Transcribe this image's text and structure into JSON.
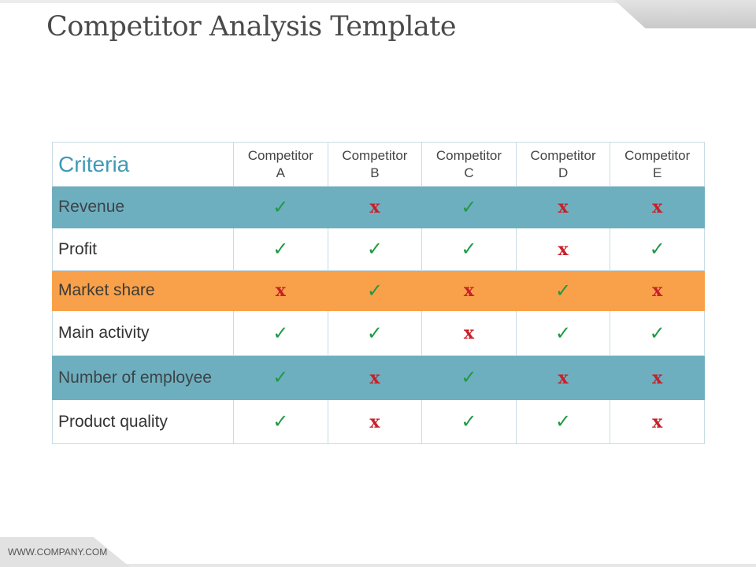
{
  "slide": {
    "title": "Competitor Analysis Template",
    "footer": "WWW.COMPANY.COM"
  },
  "table": {
    "criteria_header": "Criteria",
    "competitors": [
      {
        "line1": "Competitor",
        "line2": "A"
      },
      {
        "line1": "Competitor",
        "line2": "B"
      },
      {
        "line1": "Competitor",
        "line2": "C"
      },
      {
        "line1": "Competitor",
        "line2": "D"
      },
      {
        "line1": "Competitor",
        "line2": "E"
      }
    ],
    "rows": [
      {
        "label": "Revenue",
        "style": "teal",
        "marks": [
          "✓",
          "x",
          "✓",
          "x",
          "x"
        ]
      },
      {
        "label": "Profit",
        "style": "white",
        "marks": [
          "✓",
          "✓",
          "✓",
          "x",
          "✓"
        ]
      },
      {
        "label": "Market share",
        "style": "orange",
        "marks": [
          "x",
          "✓",
          "x",
          "✓",
          "x"
        ]
      },
      {
        "label": "Main activity",
        "style": "white",
        "marks": [
          "✓",
          "✓",
          "x",
          "✓",
          "✓"
        ]
      },
      {
        "label": "Number of employee",
        "style": "teal",
        "marks": [
          "✓",
          "x",
          "✓",
          "x",
          "x"
        ]
      },
      {
        "label": "Product quality",
        "style": "white",
        "marks": [
          "✓",
          "x",
          "✓",
          "✓",
          "x"
        ]
      }
    ]
  },
  "colors": {
    "teal": "#6eafbf",
    "orange": "#f8a14a",
    "check": "#1f9a45",
    "cross": "#c8202a",
    "header_text": "#3f9ab3"
  },
  "icons": {
    "check": "check-icon",
    "cross": "cross-icon"
  }
}
